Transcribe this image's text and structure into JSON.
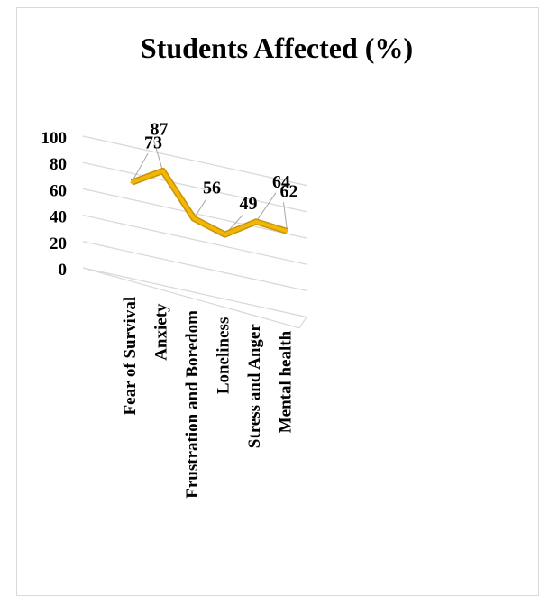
{
  "chart_data": {
    "type": "line",
    "title": "Students Affected (%)",
    "categories": [
      "Fear of Survival",
      "Anxiety",
      "Frustration and Boredom",
      "Loneliness",
      "Stress and Anger",
      "Mental health"
    ],
    "values": [
      73,
      87,
      56,
      49,
      64,
      62
    ],
    "y_ticks": [
      "0",
      "20",
      "40",
      "60",
      "80",
      "100"
    ],
    "ylim": [
      0,
      100
    ],
    "grid": true,
    "line_color": "#f2b705",
    "gridline_color": "#d9d9d9"
  }
}
